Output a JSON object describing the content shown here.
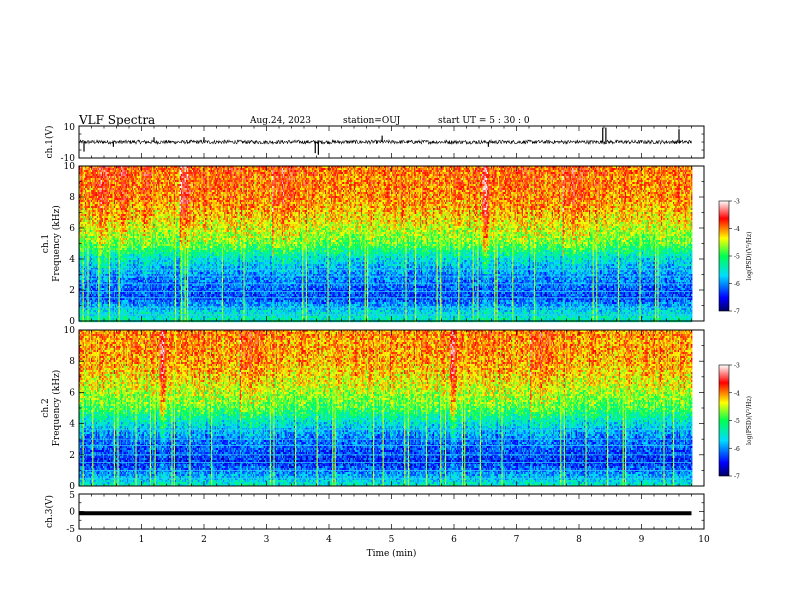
{
  "header": {
    "title": "VLF Spectra",
    "date": "Aug.24, 2023",
    "station": "station=OUJ",
    "start": "start  UT =  5 : 30 : 0"
  },
  "chart_data": [
    {
      "type": "line",
      "panel": "ch1-waveform",
      "ylabel": "ch.1(V)",
      "ylim": [
        -10,
        10
      ],
      "yticks": [
        "10",
        "-10"
      ],
      "x_unit": "min",
      "xlim": [
        0,
        10
      ],
      "data_extent_x": [
        0,
        9.8
      ],
      "baseline": 0,
      "typical_amplitude": 1.2,
      "spikes": [
        {
          "x": 0.08,
          "y": -6
        },
        {
          "x": 0.55,
          "y": -3
        },
        {
          "x": 1.2,
          "y": 3
        },
        {
          "x": 2.0,
          "y": 3
        },
        {
          "x": 3.78,
          "y": -7
        },
        {
          "x": 3.83,
          "y": -8
        },
        {
          "x": 4.85,
          "y": 4
        },
        {
          "x": 6.55,
          "y": -3
        },
        {
          "x": 8.38,
          "y": 9
        },
        {
          "x": 8.43,
          "y": 9
        },
        {
          "x": 9.6,
          "y": 8
        }
      ]
    },
    {
      "type": "heatmap",
      "panel": "ch1-spectrogram",
      "ylabel": "ch.1 Frequency (kHz)",
      "xlim": [
        0,
        10
      ],
      "ylim": [
        0,
        10
      ],
      "yticks": [
        "0",
        "2",
        "4",
        "6",
        "8",
        "10"
      ],
      "data_extent_x": [
        0,
        9.8
      ],
      "colorbar": {
        "label": "log(PSD)(V²/Hz)",
        "range": [
          -7,
          -3
        ],
        "ticks": [
          "-3",
          "-4",
          "-5",
          "-6",
          "-7"
        ],
        "colors": [
          "#000064",
          "#0000ff",
          "#00e0ff",
          "#00ff40",
          "#ffff00",
          "#ff0000",
          "#ffffff"
        ]
      },
      "profile": [
        {
          "f": 0,
          "v": -5.4
        },
        {
          "f": 0.5,
          "v": -5.6
        },
        {
          "f": 1.5,
          "v": -6.3
        },
        {
          "f": 3.0,
          "v": -6.0
        },
        {
          "f": 4.0,
          "v": -5.6
        },
        {
          "f": 5.0,
          "v": -4.8
        },
        {
          "f": 6.5,
          "v": -4.3
        },
        {
          "f": 8.0,
          "v": -4.0
        },
        {
          "f": 10.0,
          "v": -3.9
        }
      ],
      "noise_lines_khz": [
        0.4,
        0.85,
        1.5,
        1.9,
        2.4,
        2.9,
        3.3
      ]
    },
    {
      "type": "heatmap",
      "panel": "ch2-spectrogram",
      "ylabel": "ch.2 Frequency (kHz)",
      "xlim": [
        0,
        10
      ],
      "ylim": [
        0,
        10
      ],
      "yticks": [
        "0",
        "2",
        "4",
        "6",
        "8",
        "10"
      ],
      "data_extent_x": [
        0,
        9.8
      ],
      "colorbar": {
        "label": "log(PSD)(V²/Hz)",
        "range": [
          -7,
          -3
        ],
        "ticks": [
          "-3",
          "-4",
          "-5",
          "-6",
          "-7"
        ],
        "colors": [
          "#000064",
          "#0000ff",
          "#00e0ff",
          "#00ff40",
          "#ffff00",
          "#ff0000",
          "#ffffff"
        ]
      },
      "profile": [
        {
          "f": 0,
          "v": -5.4
        },
        {
          "f": 0.5,
          "v": -5.8
        },
        {
          "f": 1.5,
          "v": -6.4
        },
        {
          "f": 3.0,
          "v": -6.1
        },
        {
          "f": 4.0,
          "v": -5.6
        },
        {
          "f": 5.0,
          "v": -4.9
        },
        {
          "f": 6.5,
          "v": -4.4
        },
        {
          "f": 8.0,
          "v": -4.1
        },
        {
          "f": 10.0,
          "v": -4.0
        }
      ],
      "noise_lines_khz": [
        0.5,
        1.0,
        1.5,
        2.0,
        2.6,
        3.0,
        3.6
      ]
    },
    {
      "type": "line",
      "panel": "ch3-waveform",
      "ylabel": "ch.3(V)",
      "ylim": [
        -5,
        5
      ],
      "yticks": [
        "5",
        "0",
        "-5"
      ],
      "xlim": [
        0,
        10
      ],
      "data_extent_x": [
        0,
        9.8
      ],
      "constant_value": -0.5
    }
  ],
  "x_axis": {
    "label": "Time  (min)",
    "ticks": [
      "0",
      "1",
      "2",
      "3",
      "4",
      "5",
      "6",
      "7",
      "8",
      "9",
      "10"
    ]
  }
}
